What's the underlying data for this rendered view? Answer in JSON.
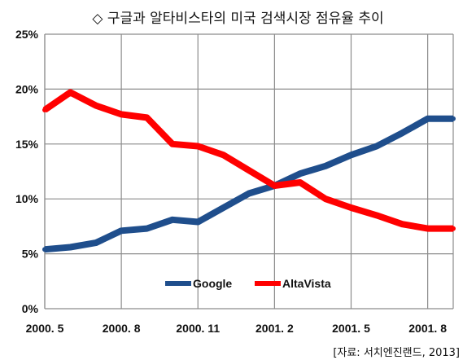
{
  "title": "◇ 구글과 알타비스타의 미국 검색시장 점유율 추이",
  "source": "[자료: 서치엔진랜드, 2013]",
  "chart_data": {
    "type": "line",
    "title": "◇ 구글과 알타비스타의 미국 검색시장 점유율 추이",
    "x": [
      "2000. 5",
      "2000. 6",
      "2000. 7",
      "2000. 8",
      "2000. 9",
      "2000. 10",
      "2000. 11",
      "2000. 12",
      "2001. 1",
      "2001. 2",
      "2001. 3",
      "2001. 4",
      "2001. 5",
      "2001. 6",
      "2001. 7",
      "2001. 8",
      "2001. 9"
    ],
    "x_tick_labels": [
      "2000. 5",
      "2000. 8",
      "2000. 11",
      "2001. 2",
      "2001. 5",
      "2001. 8"
    ],
    "y_tick_labels": [
      "0%",
      "5%",
      "10%",
      "15%",
      "20%",
      "25%"
    ],
    "ylim": [
      0,
      25
    ],
    "grid": true,
    "legend": "bottom-center",
    "series": [
      {
        "name": "Google",
        "color": "#1f4e8c",
        "values": [
          5.4,
          5.6,
          6.0,
          7.1,
          7.3,
          8.1,
          7.9,
          9.2,
          10.5,
          11.2,
          12.3,
          13.0,
          14.0,
          14.8,
          16.0,
          17.3,
          17.3
        ]
      },
      {
        "name": "AltaVista",
        "color": "#ff0000",
        "values": [
          18.1,
          19.7,
          18.5,
          17.7,
          17.4,
          15.0,
          14.8,
          14.0,
          12.6,
          11.2,
          11.5,
          10.0,
          9.2,
          8.5,
          7.7,
          7.3,
          7.3
        ]
      }
    ]
  }
}
